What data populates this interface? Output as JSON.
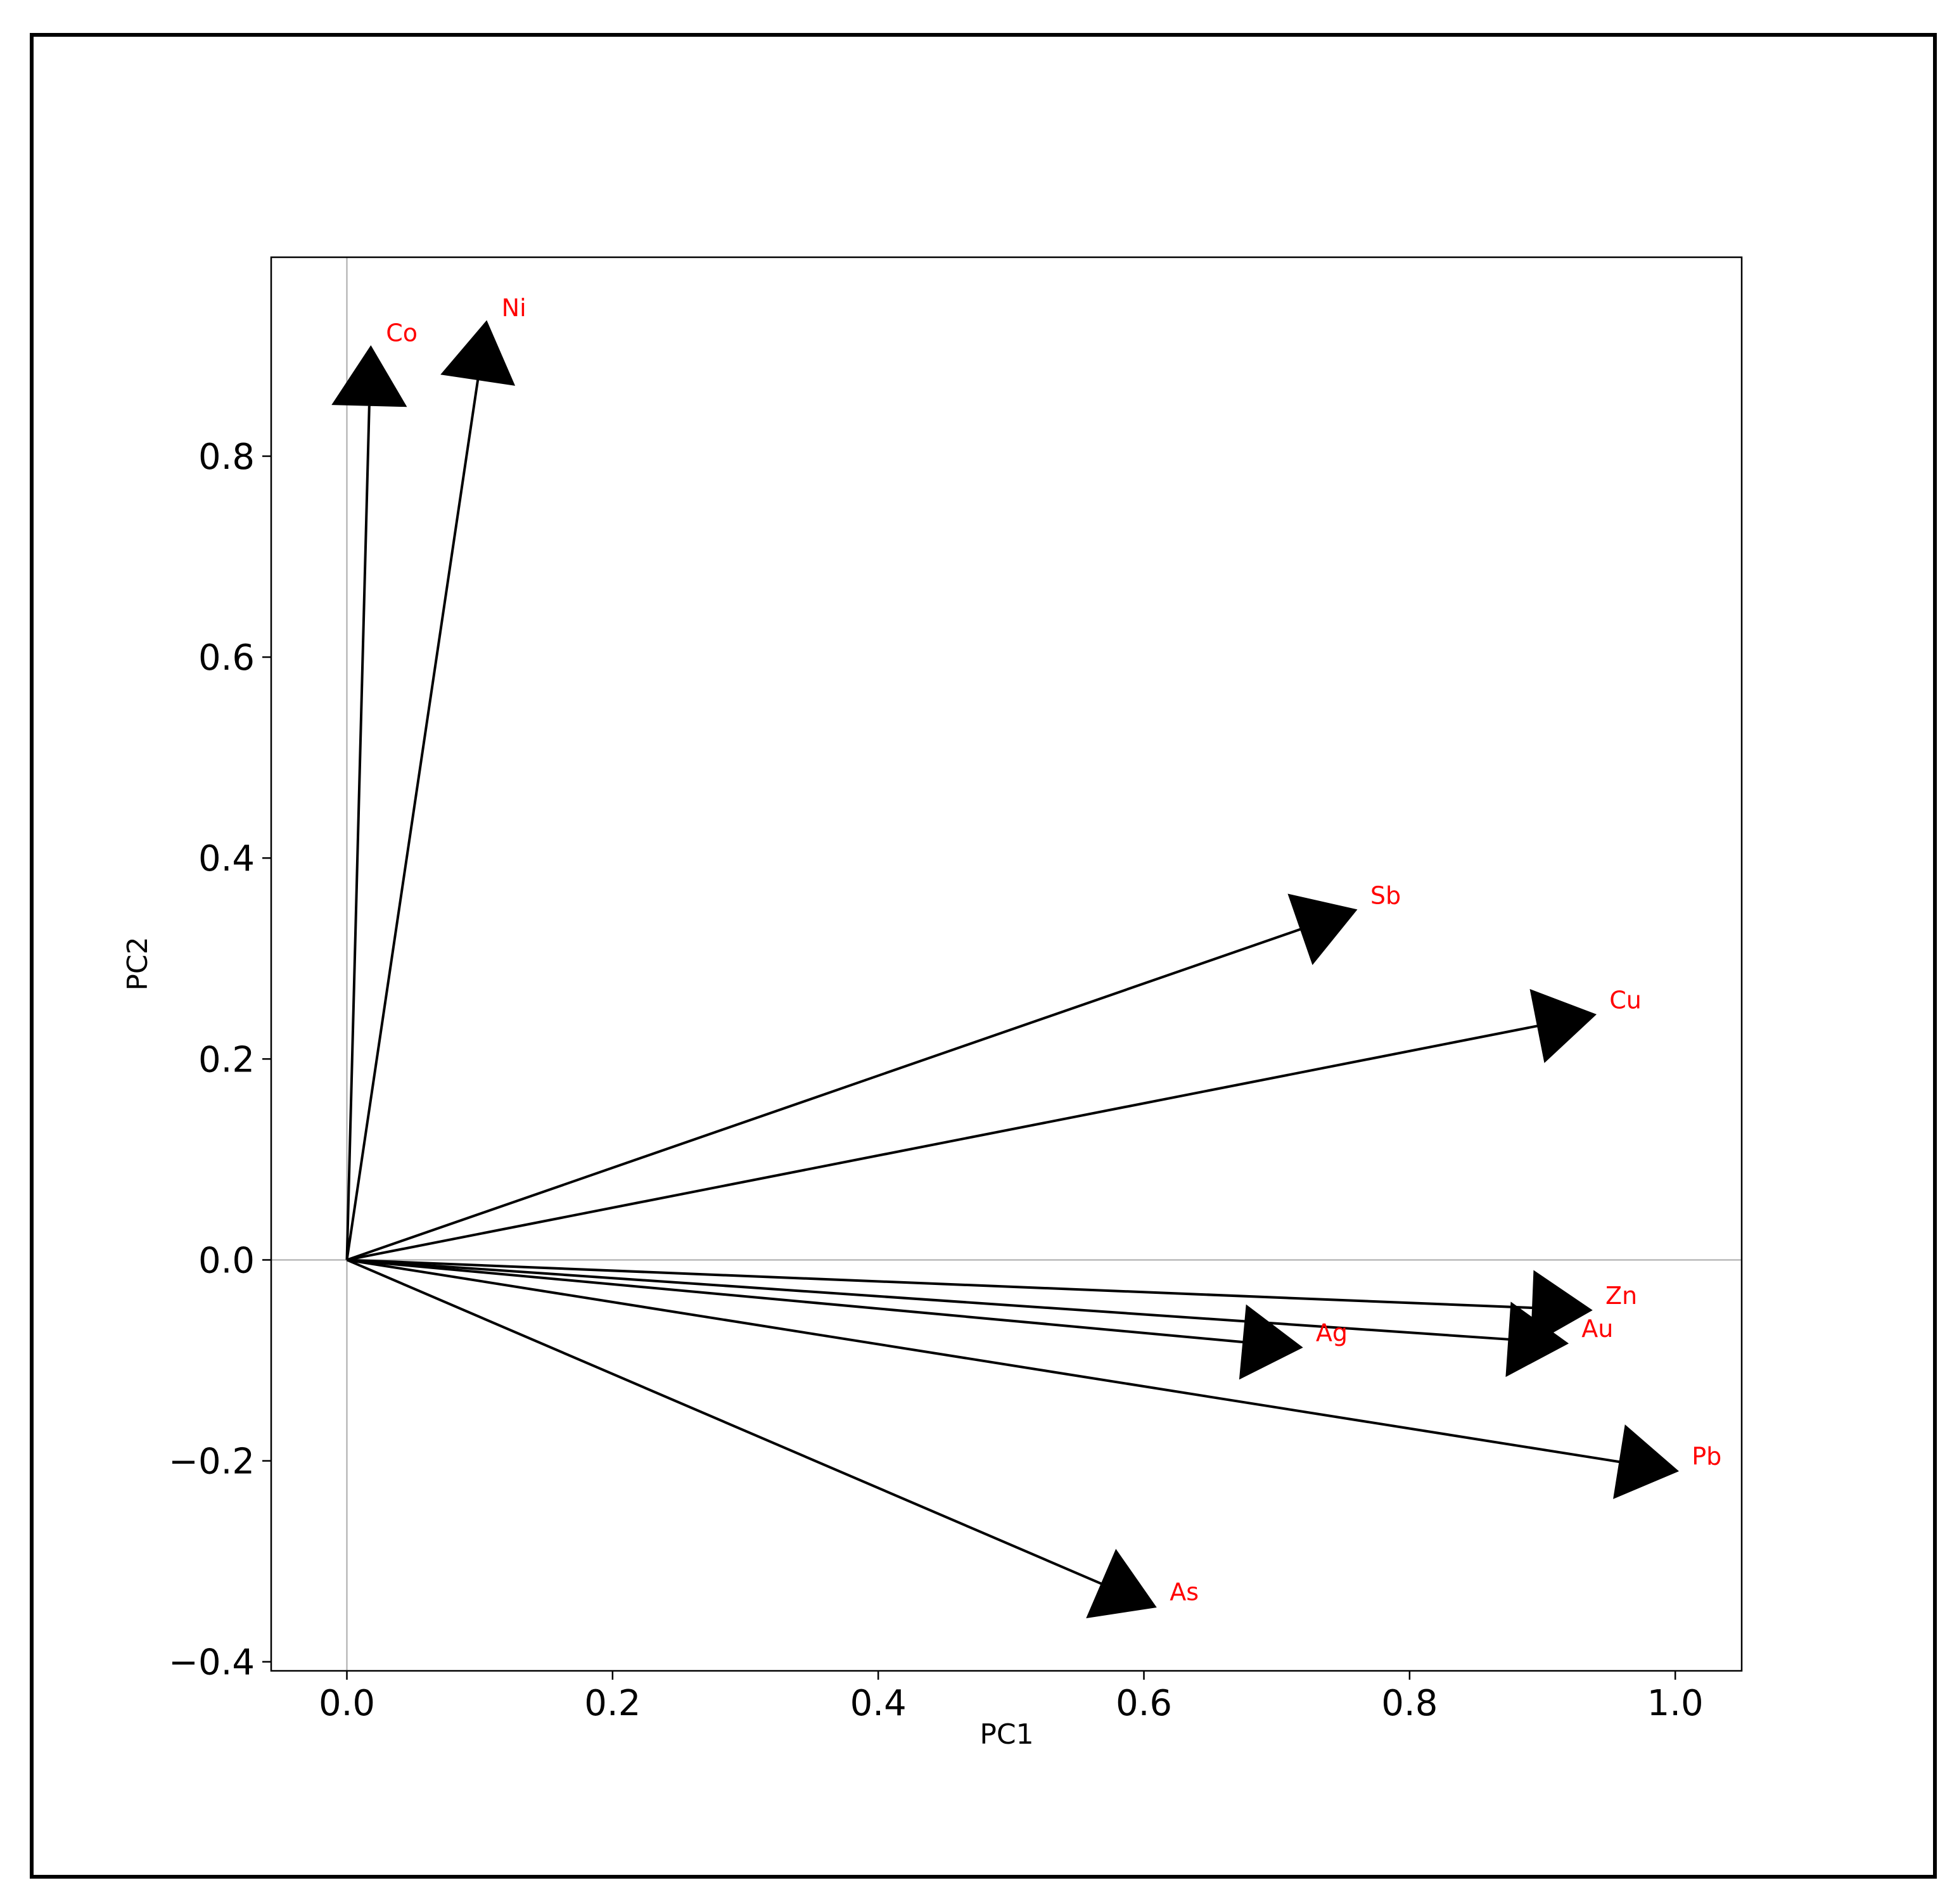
{
  "chart_data": {
    "type": "biplot",
    "x_label": "PC1",
    "y_label": "PC2",
    "xlim": [
      -0.057,
      1.05
    ],
    "ylim": [
      -0.409,
      0.998
    ],
    "xticks": [
      {
        "value": 0,
        "label": "0.0"
      },
      0.2,
      0.4,
      0.6,
      0.8,
      {
        "value": 1,
        "label": "1.0"
      }
    ],
    "yticks": [
      {
        "value": -0.4,
        "label": "−0.4"
      },
      {
        "value": -0.2,
        "label": "−0.2"
      },
      {
        "value": 0,
        "label": "0.0"
      },
      0.2,
      0.4,
      0.6,
      0.8
    ],
    "reference_lines": true,
    "color": "#000000",
    "label_color": "#ff0000",
    "vectors": [
      {
        "name": "Co",
        "x": 0.018,
        "y": 0.908
      },
      {
        "name": "Ni",
        "x": 0.105,
        "y": 0.933
      },
      {
        "name": "Sb",
        "x": 0.759,
        "y": 0.348
      },
      {
        "name": "Cu",
        "x": 0.939,
        "y": 0.244
      },
      {
        "name": "Zn",
        "x": 0.936,
        "y": -0.05
      },
      {
        "name": "Au",
        "x": 0.918,
        "y": -0.083
      },
      {
        "name": "Ag",
        "x": 0.718,
        "y": -0.087
      },
      {
        "name": "Pb",
        "x": 1.001,
        "y": -0.21
      },
      {
        "name": "As",
        "x": 0.608,
        "y": -0.345
      }
    ]
  }
}
